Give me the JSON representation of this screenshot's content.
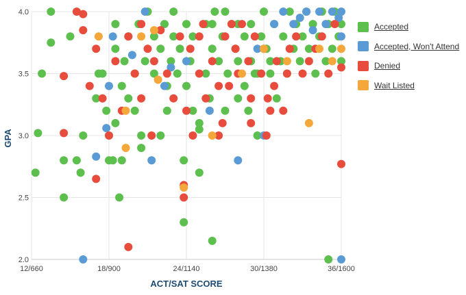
{
  "chart_data": {
    "type": "scatter",
    "xlabel": "ACT/SAT SCORE",
    "ylabel": "GPA",
    "xlim": [
      12,
      36
    ],
    "ylim": [
      2.0,
      4.0
    ],
    "x_ticks": [
      {
        "value": 12,
        "label": "12/660"
      },
      {
        "value": 18,
        "label": "18/900"
      },
      {
        "value": 24,
        "label": "24/1140"
      },
      {
        "value": 30,
        "label": "30/1380"
      },
      {
        "value": 36,
        "label": "36/1600"
      }
    ],
    "y_ticks": [
      {
        "value": 2.0,
        "label": "2.0"
      },
      {
        "value": 2.5,
        "label": "2.5"
      },
      {
        "value": 3.0,
        "label": "3.0"
      },
      {
        "value": 3.5,
        "label": "3.5"
      },
      {
        "value": 4.0,
        "label": "4.0"
      }
    ],
    "grid": true,
    "legend_position": "right",
    "series": [
      {
        "name": "Accepted",
        "color": "#5cbf4e",
        "points": [
          [
            12.3,
            2.7
          ],
          [
            12.5,
            3.02
          ],
          [
            12.8,
            3.5
          ],
          [
            13.5,
            4.0
          ],
          [
            13.5,
            3.75
          ],
          [
            14.5,
            2.8
          ],
          [
            14.5,
            2.5
          ],
          [
            15.0,
            3.8
          ],
          [
            15.5,
            2.8
          ],
          [
            15.8,
            2.7
          ],
          [
            16.0,
            3.0
          ],
          [
            17.0,
            3.3
          ],
          [
            17.2,
            3.5
          ],
          [
            17.5,
            3.5
          ],
          [
            17.8,
            3.2
          ],
          [
            18.0,
            3.0
          ],
          [
            18.0,
            2.8
          ],
          [
            18.3,
            2.8
          ],
          [
            18.5,
            3.1
          ],
          [
            18.5,
            3.9
          ],
          [
            18.5,
            3.7
          ],
          [
            18.8,
            2.5
          ],
          [
            19.0,
            2.8
          ],
          [
            19.0,
            3.4
          ],
          [
            19.2,
            3.6
          ],
          [
            19.5,
            3.8
          ],
          [
            19.5,
            3.3
          ],
          [
            20.0,
            3.2
          ],
          [
            20.0,
            3.5
          ],
          [
            20.3,
            3.9
          ],
          [
            20.5,
            3.0
          ],
          [
            20.5,
            2.9
          ],
          [
            20.8,
            3.6
          ],
          [
            21.0,
            4.0
          ],
          [
            21.5,
            3.8
          ],
          [
            21.5,
            3.5
          ],
          [
            22.0,
            3.0
          ],
          [
            22.0,
            3.7
          ],
          [
            22.3,
            3.9
          ],
          [
            22.5,
            3.2
          ],
          [
            22.5,
            3.4
          ],
          [
            22.8,
            3.6
          ],
          [
            23.0,
            4.0
          ],
          [
            23.0,
            3.8
          ],
          [
            23.3,
            3.5
          ],
          [
            23.5,
            3.7
          ],
          [
            23.8,
            2.8
          ],
          [
            23.8,
            2.3
          ],
          [
            24.0,
            3.9
          ],
          [
            24.0,
            3.4
          ],
          [
            24.3,
            3.6
          ],
          [
            24.5,
            3.8
          ],
          [
            24.5,
            3.2
          ],
          [
            25.0,
            3.1
          ],
          [
            25.0,
            3.05
          ],
          [
            25.0,
            2.7
          ],
          [
            25.5,
            3.9
          ],
          [
            25.5,
            3.5
          ],
          [
            25.8,
            3.3
          ],
          [
            26.0,
            2.15
          ],
          [
            26.0,
            3.7
          ],
          [
            26.2,
            4.0
          ],
          [
            26.5,
            3.6
          ],
          [
            26.8,
            3.8
          ],
          [
            27.0,
            3.2
          ],
          [
            27.2,
            3.5
          ],
          [
            27.5,
            3.9
          ],
          [
            27.8,
            3.7
          ],
          [
            28.0,
            3.3
          ],
          [
            28.0,
            3.6
          ],
          [
            28.5,
            3.4
          ],
          [
            28.5,
            3.8
          ],
          [
            28.8,
            3.2
          ],
          [
            29.0,
            3.9
          ],
          [
            29.0,
            3.6
          ],
          [
            29.3,
            3.5
          ],
          [
            29.5,
            3.0
          ],
          [
            29.8,
            3.8
          ],
          [
            30.0,
            4.0
          ],
          [
            30.2,
            3.7
          ],
          [
            30.5,
            3.5
          ],
          [
            30.8,
            3.9
          ],
          [
            31.0,
            3.3
          ],
          [
            31.3,
            3.6
          ],
          [
            31.5,
            3.8
          ],
          [
            31.8,
            3.5
          ],
          [
            32.0,
            4.0
          ],
          [
            32.3,
            3.7
          ],
          [
            32.5,
            3.9
          ],
          [
            32.8,
            3.6
          ],
          [
            33.0,
            3.8
          ],
          [
            33.3,
            4.0
          ],
          [
            33.5,
            3.7
          ],
          [
            33.8,
            3.9
          ],
          [
            34.0,
            3.5
          ],
          [
            34.3,
            3.8
          ],
          [
            34.5,
            4.0
          ],
          [
            34.8,
            3.6
          ],
          [
            35.0,
            3.9
          ],
          [
            35.0,
            2.0
          ],
          [
            35.3,
            3.7
          ],
          [
            35.5,
            4.0
          ],
          [
            35.8,
            3.8
          ],
          [
            36.0,
            3.9
          ],
          [
            36.0,
            3.6
          ],
          [
            29.5,
            3.5
          ],
          [
            30.5,
            3.6
          ],
          [
            28.0,
            3.9
          ],
          [
            27.0,
            4.0
          ],
          [
            26.0,
            3.9
          ]
        ]
      },
      {
        "name": "Accepted, Won't Attend",
        "color": "#5b9bd5",
        "points": [
          [
            16.0,
            2.0
          ],
          [
            17.0,
            2.83
          ],
          [
            17.8,
            3.06
          ],
          [
            18.0,
            3.4
          ],
          [
            18.3,
            3.8
          ],
          [
            19.8,
            3.65
          ],
          [
            20.8,
            4.0
          ],
          [
            21.3,
            2.8
          ],
          [
            22.3,
            3.4
          ],
          [
            22.8,
            3.55
          ],
          [
            24.0,
            3.6
          ],
          [
            25.8,
            3.2
          ],
          [
            28.0,
            2.8
          ],
          [
            29.5,
            3.7
          ],
          [
            30.0,
            3.0
          ],
          [
            30.8,
            3.9
          ],
          [
            31.5,
            4.0
          ],
          [
            32.3,
            3.9
          ],
          [
            32.8,
            3.95
          ],
          [
            33.3,
            4.0
          ],
          [
            33.8,
            3.85
          ],
          [
            34.3,
            4.0
          ],
          [
            34.8,
            3.9
          ],
          [
            35.3,
            4.0
          ],
          [
            35.8,
            3.95
          ],
          [
            36.0,
            2.0
          ],
          [
            36.0,
            3.8
          ],
          [
            36.0,
            4.0
          ]
        ]
      },
      {
        "name": "Denied",
        "color": "#e84c3d",
        "points": [
          [
            14.5,
            3.48
          ],
          [
            14.5,
            3.02
          ],
          [
            15.5,
            4.0
          ],
          [
            16.0,
            3.98
          ],
          [
            16.0,
            3.85
          ],
          [
            16.5,
            3.4
          ],
          [
            17.0,
            3.7
          ],
          [
            17.0,
            2.65
          ],
          [
            17.5,
            3.3
          ],
          [
            18.0,
            3.0
          ],
          [
            18.5,
            3.6
          ],
          [
            19.0,
            3.2
          ],
          [
            19.5,
            3.8
          ],
          [
            19.5,
            2.1
          ],
          [
            20.0,
            3.5
          ],
          [
            20.5,
            3.9
          ],
          [
            20.5,
            3.3
          ],
          [
            21.0,
            3.7
          ],
          [
            21.3,
            3.0
          ],
          [
            21.5,
            3.6
          ],
          [
            22.0,
            3.85
          ],
          [
            22.5,
            3.5
          ],
          [
            23.0,
            3.3
          ],
          [
            23.5,
            3.8
          ],
          [
            23.8,
            2.6
          ],
          [
            23.8,
            2.5
          ],
          [
            24.0,
            3.2
          ],
          [
            24.3,
            3.7
          ],
          [
            24.5,
            3.0
          ],
          [
            25.0,
            3.5
          ],
          [
            25.3,
            3.9
          ],
          [
            25.5,
            3.3
          ],
          [
            26.0,
            3.6
          ],
          [
            26.5,
            3.0
          ],
          [
            26.8,
            3.1
          ],
          [
            27.0,
            3.8
          ],
          [
            27.3,
            3.4
          ],
          [
            27.8,
            3.7
          ],
          [
            28.0,
            3.5
          ],
          [
            28.3,
            3.9
          ],
          [
            28.8,
            3.6
          ],
          [
            29.0,
            3.3
          ],
          [
            29.3,
            3.8
          ],
          [
            29.8,
            3.5
          ],
          [
            30.0,
            3.7
          ],
          [
            30.2,
            3.0
          ],
          [
            30.3,
            3.3
          ],
          [
            30.5,
            3.2
          ],
          [
            30.8,
            3.4
          ],
          [
            31.0,
            3.6
          ],
          [
            31.5,
            3.2
          ],
          [
            31.8,
            3.5
          ],
          [
            32.0,
            3.7
          ],
          [
            32.5,
            3.8
          ],
          [
            33.0,
            3.5
          ],
          [
            33.5,
            3.6
          ],
          [
            34.0,
            3.7
          ],
          [
            34.5,
            3.8
          ],
          [
            35.0,
            3.5
          ],
          [
            35.5,
            3.9
          ],
          [
            36.0,
            3.55
          ],
          [
            36.0,
            2.77
          ],
          [
            29.0,
            3.1
          ],
          [
            27.5,
            3.9
          ],
          [
            26.5,
            3.4
          ],
          [
            25.0,
            3.8
          ]
        ]
      },
      {
        "name": "Wait Listed",
        "color": "#f4a73b",
        "points": [
          [
            17.2,
            3.8
          ],
          [
            19.3,
            3.2
          ],
          [
            19.3,
            2.9
          ],
          [
            20.5,
            3.8
          ],
          [
            21.5,
            3.85
          ],
          [
            21.8,
            3.45
          ],
          [
            23.8,
            2.58
          ],
          [
            26.0,
            3.0
          ],
          [
            28.3,
            3.5
          ],
          [
            30.0,
            3.7
          ],
          [
            31.8,
            3.6
          ],
          [
            33.5,
            3.1
          ],
          [
            34.3,
            3.7
          ],
          [
            35.3,
            3.6
          ],
          [
            36.0,
            3.7
          ]
        ]
      }
    ]
  },
  "legend": [
    {
      "label": "Accepted",
      "color": "#5cbf4e"
    },
    {
      "label": "Accepted, Won't Attend",
      "color": "#5b9bd5"
    },
    {
      "label": "Denied",
      "color": "#e84c3d"
    },
    {
      "label": "Wait Listed",
      "color": "#f4a73b"
    }
  ]
}
